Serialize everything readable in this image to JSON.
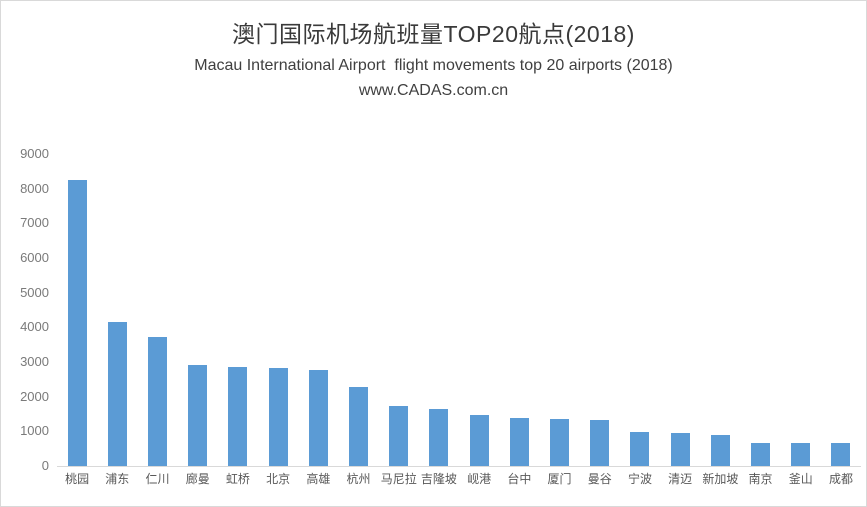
{
  "header": {
    "title": "澳门国际机场航班量TOP20航点(2018)",
    "subtitle": "Macau International Airport  flight movements top 20 airports (2018)",
    "source": "www.CADAS.com.cn"
  },
  "colors": {
    "bar": "#5B9BD5",
    "axis_line": "#d9d9d9",
    "y_tick_text": "#7a7a7a",
    "x_tick_text": "#595959",
    "title_text": "#3a3a3a"
  },
  "chart_data": {
    "type": "bar",
    "title": "澳门国际机场航班量TOP20航点(2018)",
    "subtitle": "Macau International Airport  flight movements top 20 airports (2018)",
    "source": "www.CADAS.com.cn",
    "categories": [
      "桃园",
      "浦东",
      "仁川",
      "廊曼",
      "虹桥",
      "北京",
      "高雄",
      "杭州",
      "马尼拉",
      "吉隆坡",
      "岘港",
      "台中",
      "厦门",
      "曼谷",
      "宁波",
      "清迈",
      "新加坡",
      "南京",
      "釜山",
      "成都"
    ],
    "values": [
      8240,
      4140,
      3730,
      2900,
      2870,
      2830,
      2780,
      2270,
      1720,
      1630,
      1470,
      1380,
      1360,
      1340,
      980,
      950,
      890,
      660,
      650,
      650
    ],
    "xlabel": "",
    "ylabel": "",
    "ylim": [
      0,
      9000
    ],
    "yticks": [
      0,
      1000,
      2000,
      3000,
      4000,
      5000,
      6000,
      7000,
      8000,
      9000
    ],
    "grid": false,
    "legend": false,
    "bar_color": "#5B9BD5"
  }
}
